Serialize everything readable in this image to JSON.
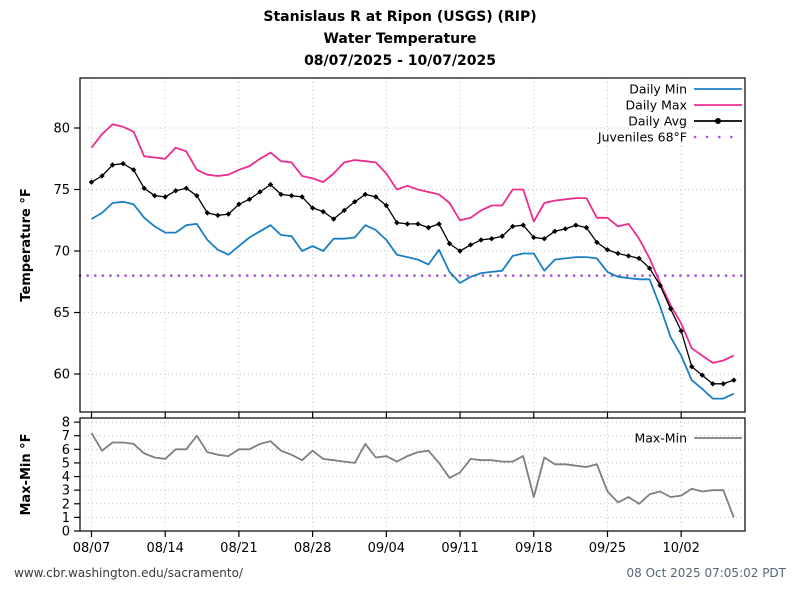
{
  "title": {
    "line1": "Stanislaus R at Ripon (USGS) (RIP)",
    "line2": "Water Temperature",
    "line3": "08/07/2025 - 10/07/2025"
  },
  "footer": {
    "url": "www.cbr.washington.edu/sacramento/",
    "timestamp": "08 Oct 2025 07:05:02 PDT"
  },
  "colors": {
    "daily_min": "#1b7fc2",
    "daily_max": "#ec2d8f",
    "daily_avg": "#000000",
    "juveniles": "#a855d8",
    "max_min": "#7f7f7f",
    "grid": "#c3c3c3",
    "axis": "#000000"
  },
  "chart_data": [
    {
      "type": "line",
      "title": "Water Temperature",
      "ylabel": "Temperature °F",
      "yticks": [
        60,
        65,
        70,
        75,
        80
      ],
      "ylim": [
        56.9,
        84.1
      ],
      "grid": true,
      "legend_position": "upper right",
      "x_tick_labels": [
        "08/07",
        "08/14",
        "08/21",
        "08/28",
        "09/04",
        "09/11",
        "09/18",
        "09/25",
        "10/02"
      ],
      "x_tick_days": [
        0,
        7,
        14,
        21,
        28,
        35,
        42,
        49,
        56
      ],
      "x_range_days": 61,
      "threshold": {
        "label": "Juveniles 68°F",
        "value": 68
      },
      "series": [
        {
          "name": "Daily Min",
          "values": [
            72.6,
            73.1,
            73.9,
            74.0,
            73.8,
            72.7,
            72.0,
            71.5,
            71.5,
            72.1,
            72.2,
            70.9,
            70.1,
            69.7,
            70.4,
            71.1,
            71.6,
            72.1,
            71.3,
            71.2,
            70.0,
            70.4,
            70.0,
            71.0,
            71.0,
            71.1,
            72.1,
            71.7,
            70.9,
            69.7,
            69.5,
            69.3,
            68.9,
            70.1,
            68.3,
            67.4,
            67.9,
            68.2,
            68.3,
            68.4,
            69.6,
            69.8,
            69.8,
            68.4,
            69.3,
            69.4,
            69.5,
            69.5,
            69.4,
            68.3,
            67.9,
            67.8,
            67.7,
            67.7,
            65.5,
            63.0,
            61.5,
            59.5,
            58.8,
            58.0,
            58.0,
            58.4
          ]
        },
        {
          "name": "Daily Max",
          "values": [
            78.4,
            79.5,
            80.3,
            80.1,
            79.7,
            77.7,
            77.6,
            77.5,
            78.4,
            78.1,
            76.6,
            76.2,
            76.1,
            76.2,
            76.6,
            76.9,
            77.5,
            78.0,
            77.3,
            77.2,
            76.1,
            75.9,
            75.6,
            76.3,
            77.2,
            77.4,
            77.3,
            77.2,
            76.3,
            75.0,
            75.3,
            75.0,
            74.8,
            74.6,
            73.9,
            72.5,
            72.7,
            73.3,
            73.7,
            73.7,
            75.0,
            75.0,
            72.4,
            73.9,
            74.1,
            74.2,
            74.3,
            74.3,
            72.7,
            72.7,
            72.0,
            72.2,
            71.0,
            69.4,
            67.4,
            65.6,
            64.1,
            62.1,
            61.5,
            60.9,
            61.1,
            61.5
          ]
        },
        {
          "name": "Daily Avg",
          "values": [
            75.6,
            76.1,
            77.0,
            77.1,
            76.6,
            75.1,
            74.5,
            74.4,
            74.9,
            75.1,
            74.5,
            73.1,
            72.9,
            73.0,
            73.8,
            74.2,
            74.8,
            75.4,
            74.6,
            74.5,
            74.4,
            73.5,
            73.2,
            72.6,
            73.3,
            74.0,
            74.6,
            74.4,
            73.7,
            72.3,
            72.2,
            72.2,
            71.9,
            72.2,
            70.6,
            70.0,
            70.5,
            70.9,
            71.0,
            71.2,
            72.0,
            72.1,
            71.1,
            71.0,
            71.6,
            71.8,
            72.1,
            71.9,
            70.7,
            70.1,
            69.8,
            69.6,
            69.4,
            68.6,
            67.2,
            65.3,
            63.5,
            60.6,
            59.9,
            59.2,
            59.2,
            59.5
          ]
        }
      ]
    },
    {
      "type": "line",
      "title": "Max-Min",
      "ylabel": "Max-Min °F",
      "yticks": [
        0,
        1,
        2,
        3,
        4,
        5,
        6,
        7,
        8
      ],
      "ylim": [
        0,
        8.3
      ],
      "grid": true,
      "legend_position": "upper right",
      "x_tick_labels": [
        "08/07",
        "08/14",
        "08/21",
        "08/28",
        "09/04",
        "09/11",
        "09/18",
        "09/25",
        "10/02"
      ],
      "x_tick_days": [
        0,
        7,
        14,
        21,
        28,
        35,
        42,
        49,
        56
      ],
      "x_range_days": 61,
      "series": [
        {
          "name": "Max-Min",
          "values": [
            7.2,
            5.9,
            6.5,
            6.5,
            6.4,
            5.7,
            5.4,
            5.3,
            6.0,
            6.0,
            7.0,
            5.8,
            5.6,
            5.5,
            6.0,
            6.0,
            6.4,
            6.6,
            5.9,
            5.6,
            5.2,
            5.9,
            5.3,
            5.2,
            5.1,
            5.0,
            6.4,
            5.4,
            5.5,
            5.1,
            5.5,
            5.8,
            5.9,
            5.0,
            3.9,
            4.3,
            5.3,
            5.2,
            5.2,
            5.1,
            5.1,
            5.5,
            2.5,
            5.4,
            4.9,
            4.9,
            4.8,
            4.7,
            4.9,
            2.9,
            2.1,
            2.5,
            2.0,
            2.7,
            2.9,
            2.5,
            2.6,
            3.1,
            2.9,
            3.0,
            3.0,
            1.0
          ]
        }
      ]
    }
  ]
}
